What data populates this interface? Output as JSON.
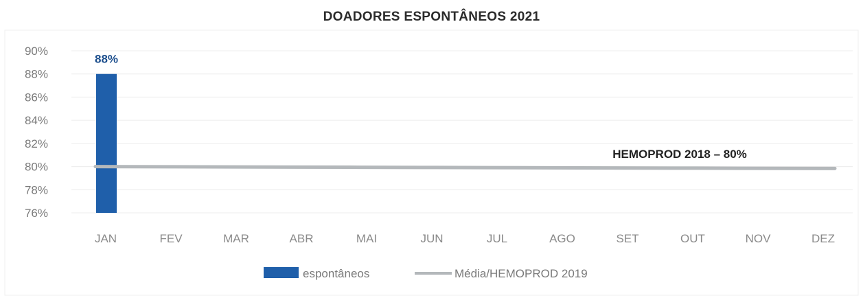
{
  "chart_data": {
    "type": "bar",
    "title": "DOADORES ESPONTÂNEOS 2021",
    "categories": [
      "JAN",
      "FEV",
      "MAR",
      "ABR",
      "MAI",
      "JUN",
      "JUL",
      "AGO",
      "SET",
      "OUT",
      "NOV",
      "DEZ"
    ],
    "series": [
      {
        "name": "espontâneos",
        "type": "bar",
        "color": "#1f5faa",
        "values": [
          88,
          null,
          null,
          null,
          null,
          null,
          null,
          null,
          null,
          null,
          null,
          null
        ]
      },
      {
        "name": "Média/HEMOPROD 2019",
        "type": "line",
        "color": "#b4b8bb",
        "values": [
          80,
          80,
          80,
          80,
          80,
          80,
          80,
          80,
          80,
          80,
          80,
          80
        ]
      }
    ],
    "y_ticks": [
      "76%",
      "78%",
      "80%",
      "82%",
      "84%",
      "86%",
      "88%",
      "90%"
    ],
    "ylim": [
      76,
      90
    ],
    "data_labels": [
      {
        "category": "JAN",
        "text": "88%"
      }
    ],
    "annotation": "HEMOPROD 2018 – 80%",
    "legend_position": "bottom",
    "grid": true
  }
}
